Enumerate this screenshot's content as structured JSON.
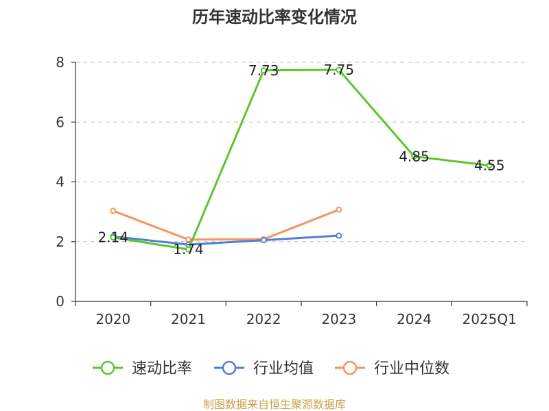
{
  "chart_data": {
    "type": "line",
    "title": "历年速动比率变化情况",
    "categories": [
      "2020",
      "2021",
      "2022",
      "2023",
      "2024",
      "2025Q1"
    ],
    "ylim": [
      0,
      8
    ],
    "yticks": [
      0,
      2,
      4,
      6,
      8
    ],
    "grid": true,
    "legend_position": "bottom",
    "series": [
      {
        "name": "速动比率",
        "color": "#5cc52c",
        "values": [
          2.14,
          1.74,
          7.73,
          7.75,
          4.85,
          4.55
        ],
        "labels": [
          "2.14",
          "1.74",
          "7.73",
          "7.75",
          "4.85",
          "4.55"
        ]
      },
      {
        "name": "行业均值",
        "color": "#4f7fd8",
        "values": [
          2.17,
          1.9,
          2.05,
          2.2,
          null,
          null
        ]
      },
      {
        "name": "行业中位数",
        "color": "#f59362",
        "values": [
          3.03,
          2.07,
          2.08,
          3.07,
          null,
          null
        ]
      }
    ]
  },
  "source": "制图数据来自恒生聚源数据库"
}
